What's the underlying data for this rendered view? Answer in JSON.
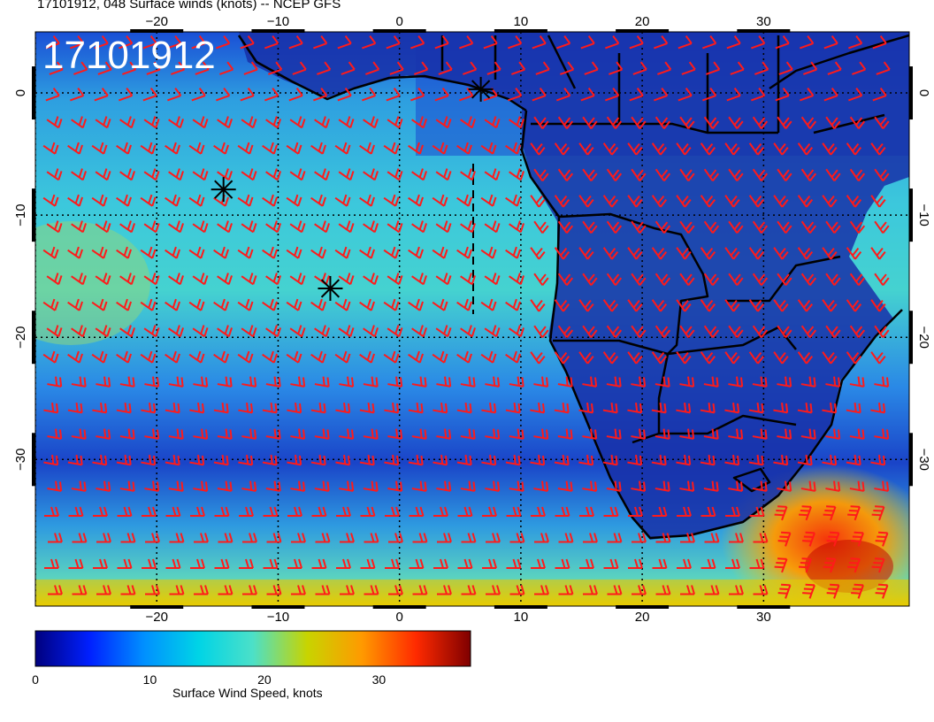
{
  "header": {
    "title": "17101912, 048 Surface winds (knots) -- NCEP GFS",
    "timestamp": "17101912"
  },
  "map": {
    "lon_range": [
      -30,
      42
    ],
    "lat_range": [
      -42,
      5
    ],
    "lon_ticks": [
      {
        "value": -20,
        "label": "−20"
      },
      {
        "value": -10,
        "label": "−10"
      },
      {
        "value": 0,
        "label": "0"
      },
      {
        "value": 10,
        "label": "10"
      },
      {
        "value": 20,
        "label": "20"
      },
      {
        "value": 30,
        "label": "30"
      }
    ],
    "lat_ticks": [
      {
        "value": 0,
        "label": "0"
      },
      {
        "value": -10,
        "label": "−10"
      },
      {
        "value": -20,
        "label": "−20"
      },
      {
        "value": -30,
        "label": "−30"
      }
    ],
    "markers": [
      {
        "lon": -14.5,
        "lat": -7.9
      },
      {
        "lon": -5.7,
        "lat": -16.0
      },
      {
        "lon": 6.7,
        "lat": 0.3
      }
    ],
    "colors": {
      "barb": "#ff1a1a",
      "border": "#000000",
      "grid": "#000000"
    }
  },
  "colorbar": {
    "title": "Surface Wind Speed, knots",
    "range": [
      0,
      38
    ],
    "ticks": [
      {
        "value": 0,
        "label": "0"
      },
      {
        "value": 10,
        "label": "10"
      },
      {
        "value": 20,
        "label": "20"
      },
      {
        "value": 30,
        "label": "30"
      }
    ],
    "stops": [
      "#00007f",
      "#0020ff",
      "#0090ff",
      "#00d4e6",
      "#4ce0c8",
      "#c8d400",
      "#ff9a00",
      "#ff2a00",
      "#7f0000"
    ]
  }
}
